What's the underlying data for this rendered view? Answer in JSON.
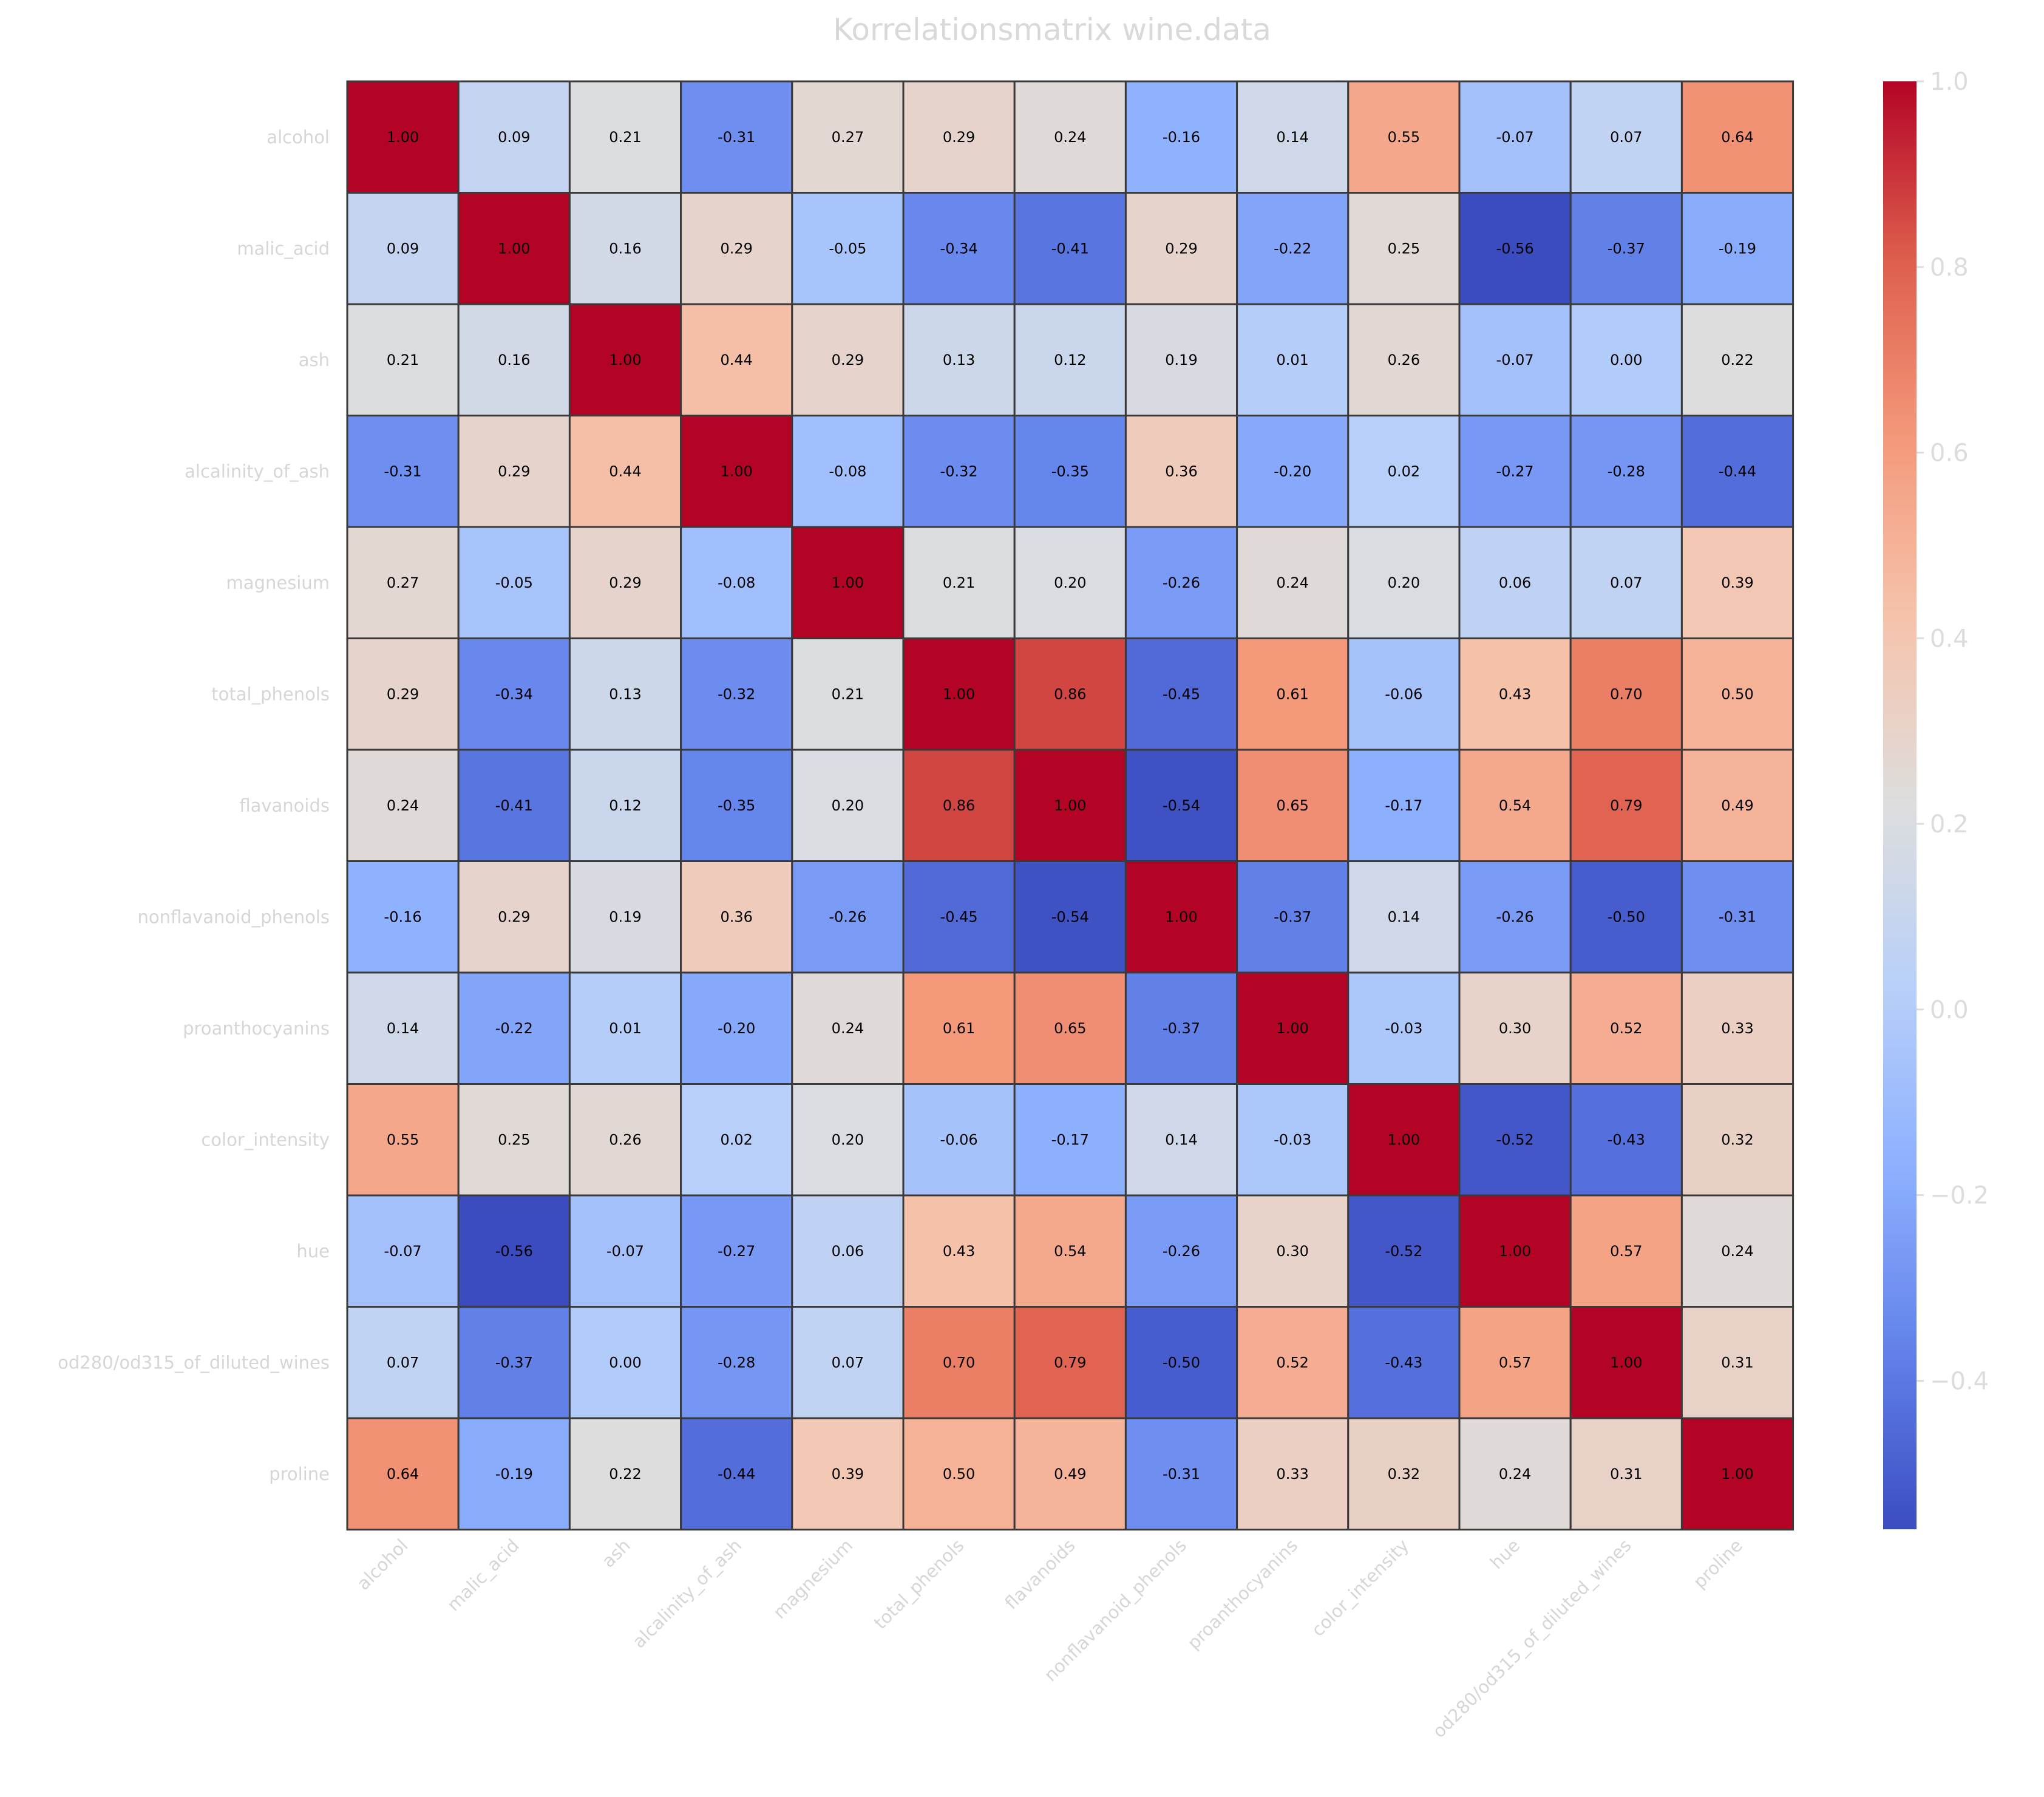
{
  "chart_data": {
    "type": "heatmap",
    "title": "Korrelationsmatrix wine.data",
    "rows": [
      "alcohol",
      "malic_acid",
      "ash",
      "alcalinity_of_ash",
      "magnesium",
      "total_phenols",
      "flavanoids",
      "nonflavanoid_phenols",
      "proanthocyanins",
      "color_intensity",
      "hue",
      "od280/od315_of_diluted_wines",
      "proline"
    ],
    "columns": [
      "alcohol",
      "malic_acid",
      "ash",
      "alcalinity_of_ash",
      "magnesium",
      "total_phenols",
      "flavanoids",
      "nonflavanoid_phenols",
      "proanthocyanins",
      "color_intensity",
      "hue",
      "od280/od315_of_diluted_wines",
      "proline"
    ],
    "values": [
      [
        1.0,
        0.09,
        0.21,
        -0.31,
        0.27,
        0.29,
        0.24,
        -0.16,
        0.14,
        0.55,
        -0.07,
        0.07,
        0.64
      ],
      [
        0.09,
        1.0,
        0.16,
        0.29,
        -0.05,
        -0.34,
        -0.41,
        0.29,
        -0.22,
        0.25,
        -0.56,
        -0.37,
        -0.19
      ],
      [
        0.21,
        0.16,
        1.0,
        0.44,
        0.29,
        0.13,
        0.12,
        0.19,
        0.01,
        0.26,
        -0.07,
        0.0,
        0.22
      ],
      [
        -0.31,
        0.29,
        0.44,
        1.0,
        -0.08,
        -0.32,
        -0.35,
        0.36,
        -0.2,
        0.02,
        -0.27,
        -0.28,
        -0.44
      ],
      [
        0.27,
        -0.05,
        0.29,
        -0.08,
        1.0,
        0.21,
        0.2,
        -0.26,
        0.24,
        0.2,
        0.06,
        0.07,
        0.39
      ],
      [
        0.29,
        -0.34,
        0.13,
        -0.32,
        0.21,
        1.0,
        0.86,
        -0.45,
        0.61,
        -0.06,
        0.43,
        0.7,
        0.5
      ],
      [
        0.24,
        -0.41,
        0.12,
        -0.35,
        0.2,
        0.86,
        1.0,
        -0.54,
        0.65,
        -0.17,
        0.54,
        0.79,
        0.49
      ],
      [
        -0.16,
        0.29,
        0.19,
        0.36,
        -0.26,
        -0.45,
        -0.54,
        1.0,
        -0.37,
        0.14,
        -0.26,
        -0.5,
        -0.31
      ],
      [
        0.14,
        -0.22,
        0.01,
        -0.2,
        0.24,
        0.61,
        0.65,
        -0.37,
        1.0,
        -0.03,
        0.3,
        0.52,
        0.33
      ],
      [
        0.55,
        0.25,
        0.26,
        0.02,
        0.2,
        -0.06,
        -0.17,
        0.14,
        -0.03,
        1.0,
        -0.52,
        -0.43,
        0.32
      ],
      [
        -0.07,
        -0.56,
        -0.07,
        -0.27,
        0.06,
        0.43,
        0.54,
        -0.26,
        0.3,
        -0.52,
        1.0,
        0.57,
        0.24
      ],
      [
        0.07,
        -0.37,
        0.0,
        -0.28,
        0.07,
        0.7,
        0.79,
        -0.5,
        0.52,
        -0.43,
        0.57,
        1.0,
        0.31
      ],
      [
        0.64,
        -0.19,
        0.22,
        -0.44,
        0.39,
        0.5,
        0.49,
        -0.31,
        0.33,
        0.32,
        0.24,
        0.31,
        1.0
      ]
    ],
    "colorscale": "coolwarm",
    "vmin": -0.56,
    "vmax": 1.0,
    "colorbar_ticks": [
      -0.4,
      -0.2,
      0.0,
      0.2,
      0.4,
      0.6,
      0.8,
      1.0
    ],
    "colorbar_tick_labels": [
      "−0.4",
      "−0.2",
      "0.0",
      "0.2",
      "0.4",
      "0.6",
      "0.8",
      "1.0"
    ],
    "value_format": "2 decimals",
    "colors": {
      "cmap_low": "#3b4cc0",
      "cmap_mid": "#dddddd",
      "cmap_high": "#b40426",
      "cell_border": "#3a3a3a",
      "text_label": "#d6d6d6",
      "cell_text": "#000000"
    },
    "legend": "colorbar-right"
  }
}
